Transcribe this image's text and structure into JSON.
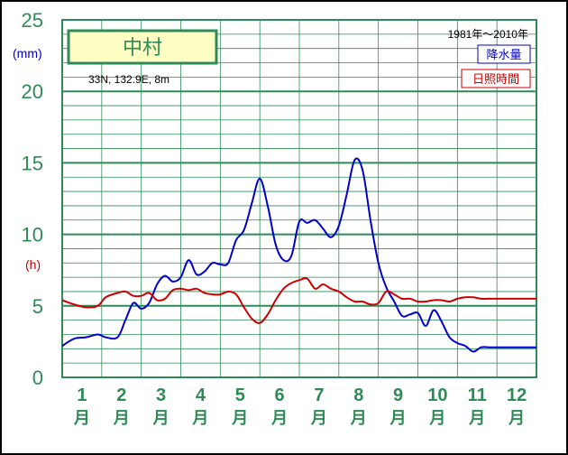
{
  "station": {
    "name": "中村",
    "coords": "33N,  132.9E,  8m"
  },
  "period": "1981年〜2010年",
  "left_axis": {
    "unit_precip": "(mm)",
    "unit_sun": "(h)"
  },
  "chart_data": {
    "type": "line",
    "title": "",
    "x_categories": [
      "1",
      "2",
      "3",
      "4",
      "5",
      "6",
      "7",
      "8",
      "9",
      "10",
      "11",
      "12"
    ],
    "month_suffix": "月",
    "ylim": [
      0,
      25
    ],
    "yticks": [
      "0",
      "5",
      "10",
      "15",
      "20",
      "25"
    ],
    "y_minor_step": 1,
    "grid": true,
    "legend_position": "top-right",
    "series": [
      {
        "name": "降水量",
        "color": "#0000cc",
        "x": [
          0.0,
          0.3,
          0.6,
          0.9,
          1.1,
          1.4,
          1.6,
          1.8,
          2.0,
          2.2,
          2.4,
          2.6,
          2.8,
          3.0,
          3.2,
          3.4,
          3.6,
          3.8,
          4.0,
          4.2,
          4.4,
          4.6,
          4.8,
          5.0,
          5.2,
          5.4,
          5.6,
          5.8,
          6.0,
          6.2,
          6.4,
          6.6,
          6.8,
          7.0,
          7.2,
          7.4,
          7.6,
          7.8,
          8.0,
          8.2,
          8.4,
          8.6,
          8.8,
          9.0,
          9.2,
          9.4,
          9.6,
          9.8,
          10.0,
          10.2,
          10.4,
          10.6,
          10.8,
          11.0,
          11.2,
          11.4,
          11.6,
          11.8,
          12.0
        ],
        "values": [
          2.2,
          2.7,
          2.8,
          3.0,
          2.8,
          2.8,
          4.0,
          5.2,
          4.8,
          5.2,
          6.5,
          7.1,
          6.7,
          7.0,
          8.2,
          7.2,
          7.4,
          8.0,
          7.9,
          8.0,
          9.6,
          10.3,
          12.2,
          13.9,
          12.0,
          9.3,
          8.2,
          8.5,
          10.9,
          10.8,
          11.0,
          10.4,
          9.8,
          10.6,
          12.8,
          15.2,
          14.5,
          11.0,
          8.0,
          6.3,
          5.3,
          4.3,
          4.4,
          4.5,
          3.6,
          4.7,
          3.9,
          2.8,
          2.4,
          2.2,
          1.8,
          2.1,
          2.1,
          2.1,
          2.1,
          2.1,
          2.1,
          2.1,
          2.1
        ]
      },
      {
        "name": "日照時間",
        "color": "#cc0000",
        "x": [
          0.0,
          0.3,
          0.6,
          0.9,
          1.1,
          1.4,
          1.6,
          1.8,
          2.0,
          2.2,
          2.4,
          2.6,
          2.8,
          3.0,
          3.2,
          3.4,
          3.6,
          3.8,
          4.0,
          4.2,
          4.4,
          4.6,
          4.8,
          5.0,
          5.2,
          5.4,
          5.6,
          5.8,
          6.0,
          6.2,
          6.4,
          6.6,
          6.8,
          7.0,
          7.2,
          7.4,
          7.6,
          7.8,
          8.0,
          8.2,
          8.4,
          8.6,
          8.8,
          9.0,
          9.2,
          9.4,
          9.6,
          9.8,
          10.0,
          10.2,
          10.4,
          10.6,
          10.8,
          11.0,
          11.2,
          11.4,
          11.6,
          11.8,
          12.0
        ],
        "values": [
          5.4,
          5.1,
          4.9,
          5.0,
          5.6,
          5.9,
          6.0,
          5.7,
          5.7,
          5.9,
          5.4,
          5.5,
          6.1,
          6.2,
          6.1,
          6.2,
          5.9,
          5.8,
          5.8,
          6.0,
          5.8,
          4.9,
          4.1,
          3.8,
          4.4,
          5.4,
          6.2,
          6.6,
          6.8,
          6.9,
          6.2,
          6.5,
          6.2,
          6.0,
          5.6,
          5.3,
          5.3,
          5.1,
          5.2,
          6.0,
          5.8,
          5.5,
          5.5,
          5.3,
          5.3,
          5.4,
          5.4,
          5.3,
          5.5,
          5.6,
          5.6,
          5.5,
          5.5,
          5.5,
          5.5,
          5.5,
          5.5,
          5.5,
          5.5
        ]
      }
    ]
  }
}
